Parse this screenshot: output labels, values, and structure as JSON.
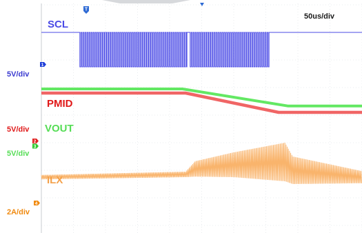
{
  "chart_data": {
    "type": "line",
    "timebase": "50us/div",
    "time_divisions": 10,
    "time_unit": "us",
    "x_range": [
      0,
      500
    ],
    "channels": [
      {
        "name": "SCL",
        "scale": "5V/div",
        "marker": "1",
        "color": "#4a4ae6",
        "marker_color": "#1f3fd8",
        "kind": "digital",
        "high_level_div": 0.0,
        "low_level_div": -1.25,
        "bursts_us": [
          [
            60,
            227
          ],
          [
            232,
            355
          ]
        ],
        "toggle_period_us": 3.2
      },
      {
        "name": "PMID",
        "scale": "5V/div",
        "marker": "2",
        "color": "#f06565",
        "marker_color": "#e02020",
        "kind": "analog",
        "points_us_div": [
          [
            0,
            2.2
          ],
          [
            225,
            2.2
          ],
          [
            370,
            2.9
          ],
          [
            500,
            2.9
          ]
        ]
      },
      {
        "name": "VOUT",
        "scale": "5V/div",
        "marker": "3",
        "color": "#63e863",
        "marker_color": "#2fc82f",
        "kind": "analog",
        "points_us_div": [
          [
            0,
            2.05
          ],
          [
            220,
            2.05
          ],
          [
            385,
            2.67
          ],
          [
            500,
            2.67
          ]
        ]
      },
      {
        "name": "ILX",
        "scale": "2A/div",
        "marker": "4",
        "color": "#f9b46c",
        "marker_color": "#f08a10",
        "kind": "ripple",
        "envelope_us": [
          {
            "t": 0,
            "center": 0.65,
            "ripple": 0.08
          },
          {
            "t": 225,
            "center": 0.75,
            "ripple": 0.1
          },
          {
            "t": 240,
            "center": 0.95,
            "ripple": 0.28
          },
          {
            "t": 300,
            "center": 1.1,
            "ripple": 0.45
          },
          {
            "t": 380,
            "center": 1.2,
            "ripple": 0.7
          },
          {
            "t": 392,
            "center": 0.9,
            "ripple": 0.5
          },
          {
            "t": 500,
            "center": 0.65,
            "ripple": 0.22
          }
        ]
      }
    ],
    "grid": true
  },
  "labels": {
    "timebase": "50us/div",
    "scl_name": "SCL",
    "scl_scale": "5V/div",
    "pmid_name": "PMID",
    "pmid_scale": "5V/div",
    "vout_name": "VOUT",
    "vout_scale": "5V/div",
    "ilx_name": "ILX",
    "ilx_scale": "2A/div",
    "marker_1": "1",
    "marker_2": "2",
    "marker_3": "3",
    "marker_4": "4",
    "trigger_marker": "T"
  }
}
